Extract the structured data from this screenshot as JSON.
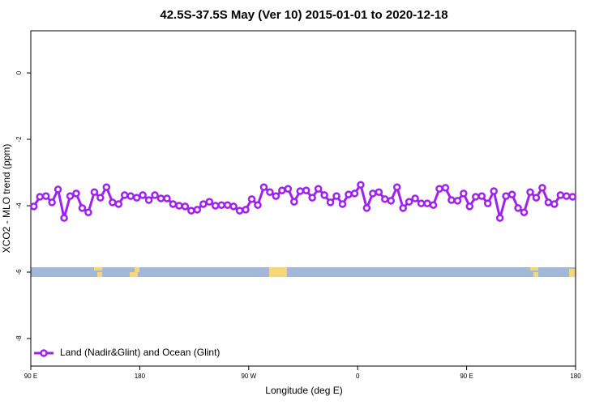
{
  "chart_data": {
    "type": "line",
    "title": "42.5S-37.5S May (Ver 10)   2015-01-01 to 2020-12-18",
    "x_label": "Longitude (deg E)",
    "y_label": "XCO2 - MLO trend (ppm)",
    "xlim": [
      90,
      540
    ],
    "ylim": [
      -8.83,
      1.27
    ],
    "xticks": [
      {
        "value": 90,
        "label": "90 E"
      },
      180,
      {
        "value": 270,
        "label": "90 W"
      },
      {
        "value": 360,
        "label": "0"
      },
      {
        "value": 450,
        "label": "90 E"
      },
      {
        "value": 540,
        "label": "180"
      }
    ],
    "yticks": [
      0,
      -2,
      -4,
      -6,
      -8
    ],
    "legend": "bottom-left",
    "x": [
      92.5,
      97.5,
      102.5,
      107.5,
      112.5,
      117.5,
      122.5,
      127.5,
      132.5,
      137.5,
      142.5,
      147.5,
      152.5,
      157.5,
      162.5,
      167.5,
      172.5,
      177.5,
      182.5,
      187.5,
      192.5,
      197.5,
      202.5,
      207.5,
      212.5,
      217.5,
      222.5,
      227.5,
      232.5,
      237.5,
      242.5,
      247.5,
      252.5,
      257.5,
      262.5,
      267.5,
      272.5,
      277.5,
      282.5,
      287.5,
      292.5,
      297.5,
      302.5,
      307.5,
      312.5,
      317.5,
      322.5,
      327.5,
      332.5,
      337.5,
      342.5,
      347.5,
      352.5,
      357.5,
      362.5,
      367.5,
      372.5,
      377.5,
      382.5,
      387.5,
      392.5,
      397.5,
      402.5,
      407.5,
      412.5,
      417.5,
      422.5,
      427.5,
      432.5,
      437.5,
      442.5,
      447.5,
      452.5,
      457.5,
      462.5,
      467.5,
      472.5,
      477.5,
      482.5,
      487.5,
      492.5,
      497.5,
      502.5,
      507.5,
      512.5,
      517.5,
      522.5,
      527.5,
      532.5,
      537.5
    ],
    "series": [
      {
        "name": "Land (Nadir&Glint) and Ocean (Glint)",
        "color": "#a020f0",
        "values": [
          -4.02,
          -3.73,
          -3.71,
          -3.9,
          -3.51,
          -4.37,
          -3.71,
          -3.63,
          -4.07,
          -4.2,
          -3.59,
          -3.76,
          -3.44,
          -3.9,
          -3.95,
          -3.68,
          -3.71,
          -3.76,
          -3.68,
          -3.83,
          -3.68,
          -3.78,
          -3.78,
          -3.95,
          -4.0,
          -4.02,
          -4.15,
          -4.12,
          -3.95,
          -3.88,
          -4.0,
          -3.98,
          -3.98,
          -4.02,
          -4.15,
          -4.12,
          -3.8,
          -3.98,
          -3.44,
          -3.59,
          -3.71,
          -3.54,
          -3.49,
          -3.88,
          -3.56,
          -3.54,
          -3.76,
          -3.49,
          -3.68,
          -3.9,
          -3.71,
          -3.95,
          -3.66,
          -3.63,
          -3.37,
          -4.07,
          -3.63,
          -3.59,
          -3.8,
          -3.85,
          -3.44,
          -4.07,
          -3.88,
          -3.78,
          -3.93,
          -3.93,
          -3.98,
          -3.49,
          -3.46,
          -3.83,
          -3.85,
          -3.63,
          -4.02,
          -3.73,
          -3.71,
          -3.93,
          -3.56,
          -4.37,
          -3.71,
          -3.66,
          -4.07,
          -4.2,
          -3.59,
          -3.76,
          -3.46,
          -3.9,
          -3.95,
          -3.68,
          -3.71,
          -3.73
        ]
      }
    ]
  }
}
